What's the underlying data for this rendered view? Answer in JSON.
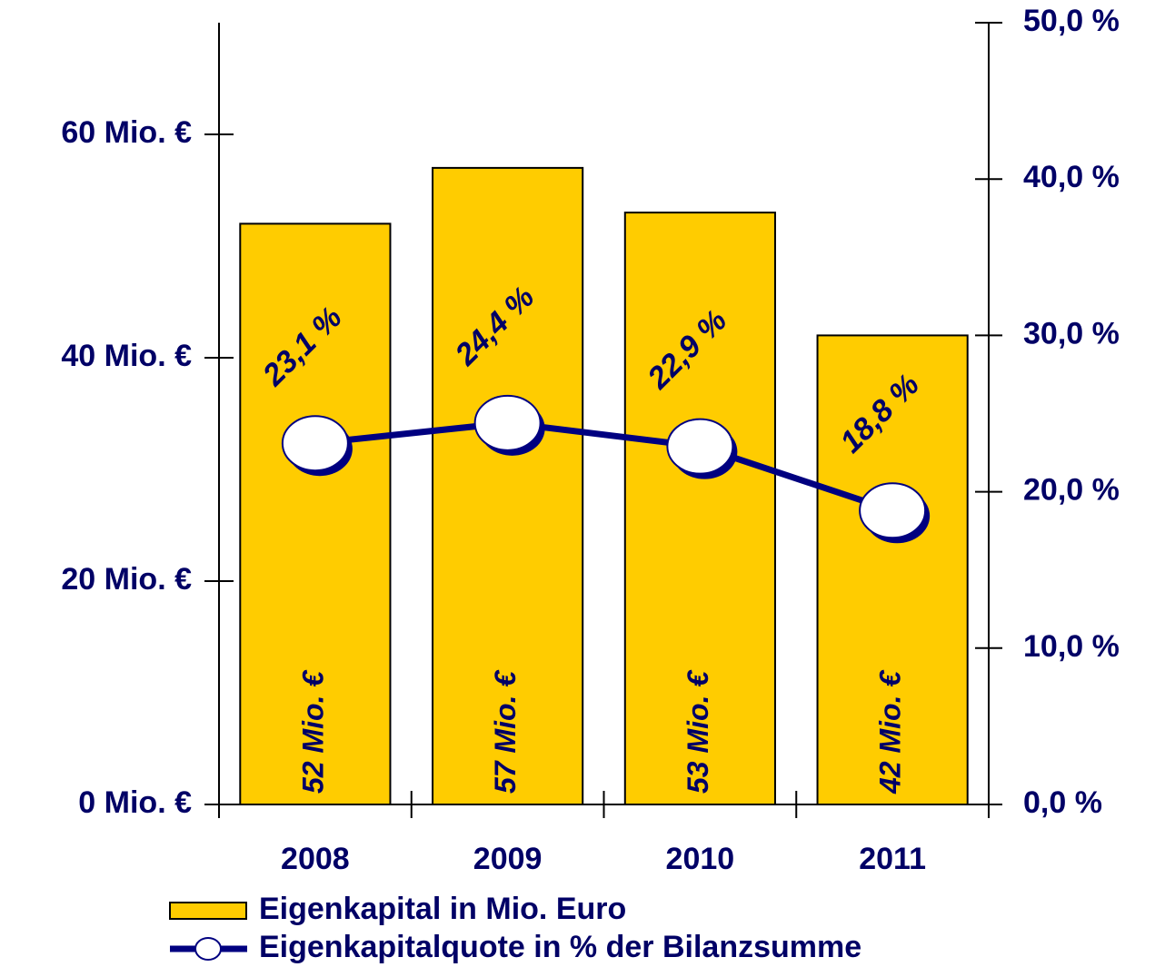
{
  "chart_data": {
    "type": "bar",
    "categories": [
      "2008",
      "2009",
      "2010",
      "2011"
    ],
    "series": [
      {
        "name": "Eigenkapital in Mio. Euro",
        "type": "bar",
        "color": "#ffcc00",
        "values": [
          52,
          57,
          53,
          42
        ],
        "value_labels": [
          "52 Mio. €",
          "57 Mio. €",
          "53 Mio. €",
          "42 Mio. €"
        ]
      },
      {
        "name": "Eigenkapitalquote in % der Bilanzsumme",
        "type": "line",
        "axis": "y2",
        "color": "#000080",
        "values": [
          23.1,
          24.4,
          22.9,
          18.8
        ],
        "value_labels": [
          "23,1 %",
          "24,4 %",
          "22,9 %",
          "18,8 %"
        ]
      }
    ],
    "ylim": [
      0,
      70
    ],
    "yticks": [
      {
        "value": 0,
        "label": "0 Mio. €"
      },
      {
        "value": 20,
        "label": "20 Mio. €"
      },
      {
        "value": 40,
        "label": "40 Mio. €"
      },
      {
        "value": 60,
        "label": "60 Mio. €"
      }
    ],
    "y2lim": [
      0,
      50
    ],
    "y2ticks": [
      {
        "value": 0,
        "label": "0,0 %"
      },
      {
        "value": 10,
        "label": "10,0 %"
      },
      {
        "value": 20,
        "label": "20,0 %"
      },
      {
        "value": 30,
        "label": "30,0 %"
      },
      {
        "value": 40,
        "label": "40,0 %"
      },
      {
        "value": 50,
        "label": "50,0 %"
      }
    ]
  }
}
